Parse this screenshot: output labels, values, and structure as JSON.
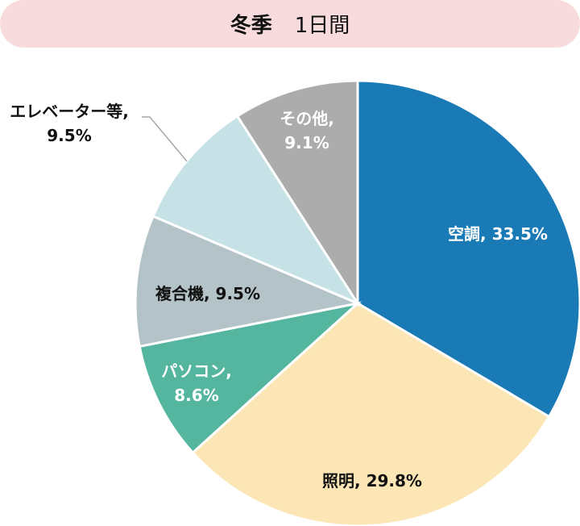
{
  "chart_data": {
    "type": "pie",
    "title": {
      "bold": "冬季",
      "rest": "1日間"
    },
    "slices": [
      {
        "label": "空調",
        "value": 33.5,
        "text": "空調, 33.5%",
        "color": "#1a7ab5",
        "text_color": "#ffffff"
      },
      {
        "label": "照明",
        "value": 29.8,
        "text": "照明, 29.8%",
        "color": "#fde6b5",
        "text_color": "#111111"
      },
      {
        "label": "パソコン",
        "value": 8.6,
        "text": "パソコン,\n8.6%",
        "color": "#55b6a0",
        "text_color": "#ffffff"
      },
      {
        "label": "複合機",
        "value": 9.5,
        "text": "複合機, 9.5%",
        "color": "#b3c3c8",
        "text_color": "#111111"
      },
      {
        "label": "エレベーター等",
        "value": 9.5,
        "text": "エレベーター等,\n9.5%",
        "color": "#c6e2e6",
        "text_color": "#111111"
      },
      {
        "label": "その他",
        "value": 9.1,
        "text": "その他,\n9.1%",
        "color": "#acacac",
        "text_color": "#ffffff"
      }
    ],
    "start": "top",
    "direction": "clockwise"
  }
}
